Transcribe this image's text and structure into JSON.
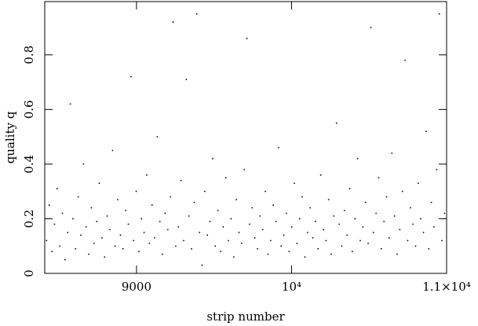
{
  "chart_data": {
    "type": "scatter",
    "xlabel": "strip number",
    "ylabel": "quality q",
    "xlim": [
      8408,
      11000
    ],
    "ylim": [
      0,
      0.995
    ],
    "xticks": [
      9000,
      {
        "value": 10000,
        "label": "10⁴"
      },
      {
        "value": 11000,
        "label": "1.1×10⁴"
      }
    ],
    "yticks": [
      0,
      0.2,
      0.4,
      0.6,
      0.8
    ],
    "color": "#000000",
    "x": [
      8420,
      8437,
      8454,
      8471,
      8488,
      8505,
      8522,
      8539,
      8556,
      8573,
      8590,
      8607,
      8624,
      8641,
      8658,
      8675,
      8692,
      8709,
      8726,
      8743,
      8760,
      8777,
      8794,
      8811,
      8828,
      8845,
      8862,
      8879,
      8896,
      8913,
      8930,
      8947,
      8964,
      8981,
      8998,
      9015,
      9032,
      9049,
      9066,
      9083,
      9100,
      9117,
      9134,
      9151,
      9168,
      9185,
      9202,
      9219,
      9236,
      9253,
      9270,
      9287,
      9304,
      9321,
      9338,
      9355,
      9372,
      9389,
      9406,
      9423,
      9440,
      9457,
      9474,
      9491,
      9508,
      9525,
      9542,
      9559,
      9576,
      9593,
      9610,
      9627,
      9644,
      9661,
      9678,
      9695,
      9712,
      9729,
      9746,
      9763,
      9780,
      9797,
      9814,
      9831,
      9848,
      9865,
      9882,
      9899,
      9916,
      9933,
      9950,
      9967,
      9984,
      10001,
      10018,
      10035,
      10052,
      10069,
      10086,
      10103,
      10120,
      10137,
      10154,
      10171,
      10188,
      10205,
      10222,
      10239,
      10256,
      10273,
      10290,
      10307,
      10324,
      10341,
      10358,
      10375,
      10392,
      10409,
      10426,
      10443,
      10460,
      10477,
      10494,
      10511,
      10528,
      10545,
      10562,
      10579,
      10596,
      10613,
      10630,
      10647,
      10664,
      10681,
      10698,
      10715,
      10732,
      10749,
      10766,
      10783,
      10800,
      10817,
      10834,
      10851,
      10868,
      10885,
      10902,
      10919,
      10936,
      10953,
      10970,
      10987
    ],
    "values": [
      0.12,
      0.25,
      0.08,
      0.18,
      0.31,
      0.1,
      0.22,
      0.05,
      0.15,
      0.62,
      0.2,
      0.09,
      0.28,
      0.14,
      0.4,
      0.17,
      0.07,
      0.24,
      0.11,
      0.19,
      0.33,
      0.13,
      0.06,
      0.21,
      0.16,
      0.45,
      0.1,
      0.27,
      0.14,
      0.09,
      0.23,
      0.18,
      0.72,
      0.12,
      0.3,
      0.08,
      0.2,
      0.15,
      0.36,
      0.11,
      0.25,
      0.13,
      0.5,
      0.19,
      0.07,
      0.22,
      0.16,
      0.28,
      0.92,
      0.1,
      0.17,
      0.34,
      0.12,
      0.71,
      0.21,
      0.09,
      0.26,
      0.95,
      0.15,
      0.03,
      0.3,
      0.14,
      0.19,
      0.42,
      0.1,
      0.23,
      0.08,
      0.17,
      0.35,
      0.12,
      0.2,
      0.06,
      0.27,
      0.15,
      0.11,
      0.38,
      0.86,
      0.18,
      0.24,
      0.13,
      0.09,
      0.21,
      0.16,
      0.3,
      0.07,
      0.12,
      0.25,
      0.19,
      0.46,
      0.1,
      0.14,
      0.22,
      0.08,
      0.17,
      0.33,
      0.11,
      0.2,
      0.28,
      0.06,
      0.15,
      0.24,
      0.13,
      0.19,
      0.09,
      0.36,
      0.16,
      0.12,
      0.27,
      0.07,
      0.21,
      0.55,
      0.18,
      0.1,
      0.23,
      0.14,
      0.31,
      0.08,
      0.2,
      0.42,
      0.12,
      0.17,
      0.26,
      0.11,
      0.9,
      0.15,
      0.22,
      0.35,
      0.09,
      0.19,
      0.28,
      0.13,
      0.44,
      0.21,
      0.07,
      0.16,
      0.3,
      0.78,
      0.12,
      0.24,
      0.18,
      0.1,
      0.33,
      0.2,
      0.15,
      0.52,
      0.09,
      0.26,
      0.17,
      0.38,
      0.95,
      0.12,
      0.22
    ]
  }
}
